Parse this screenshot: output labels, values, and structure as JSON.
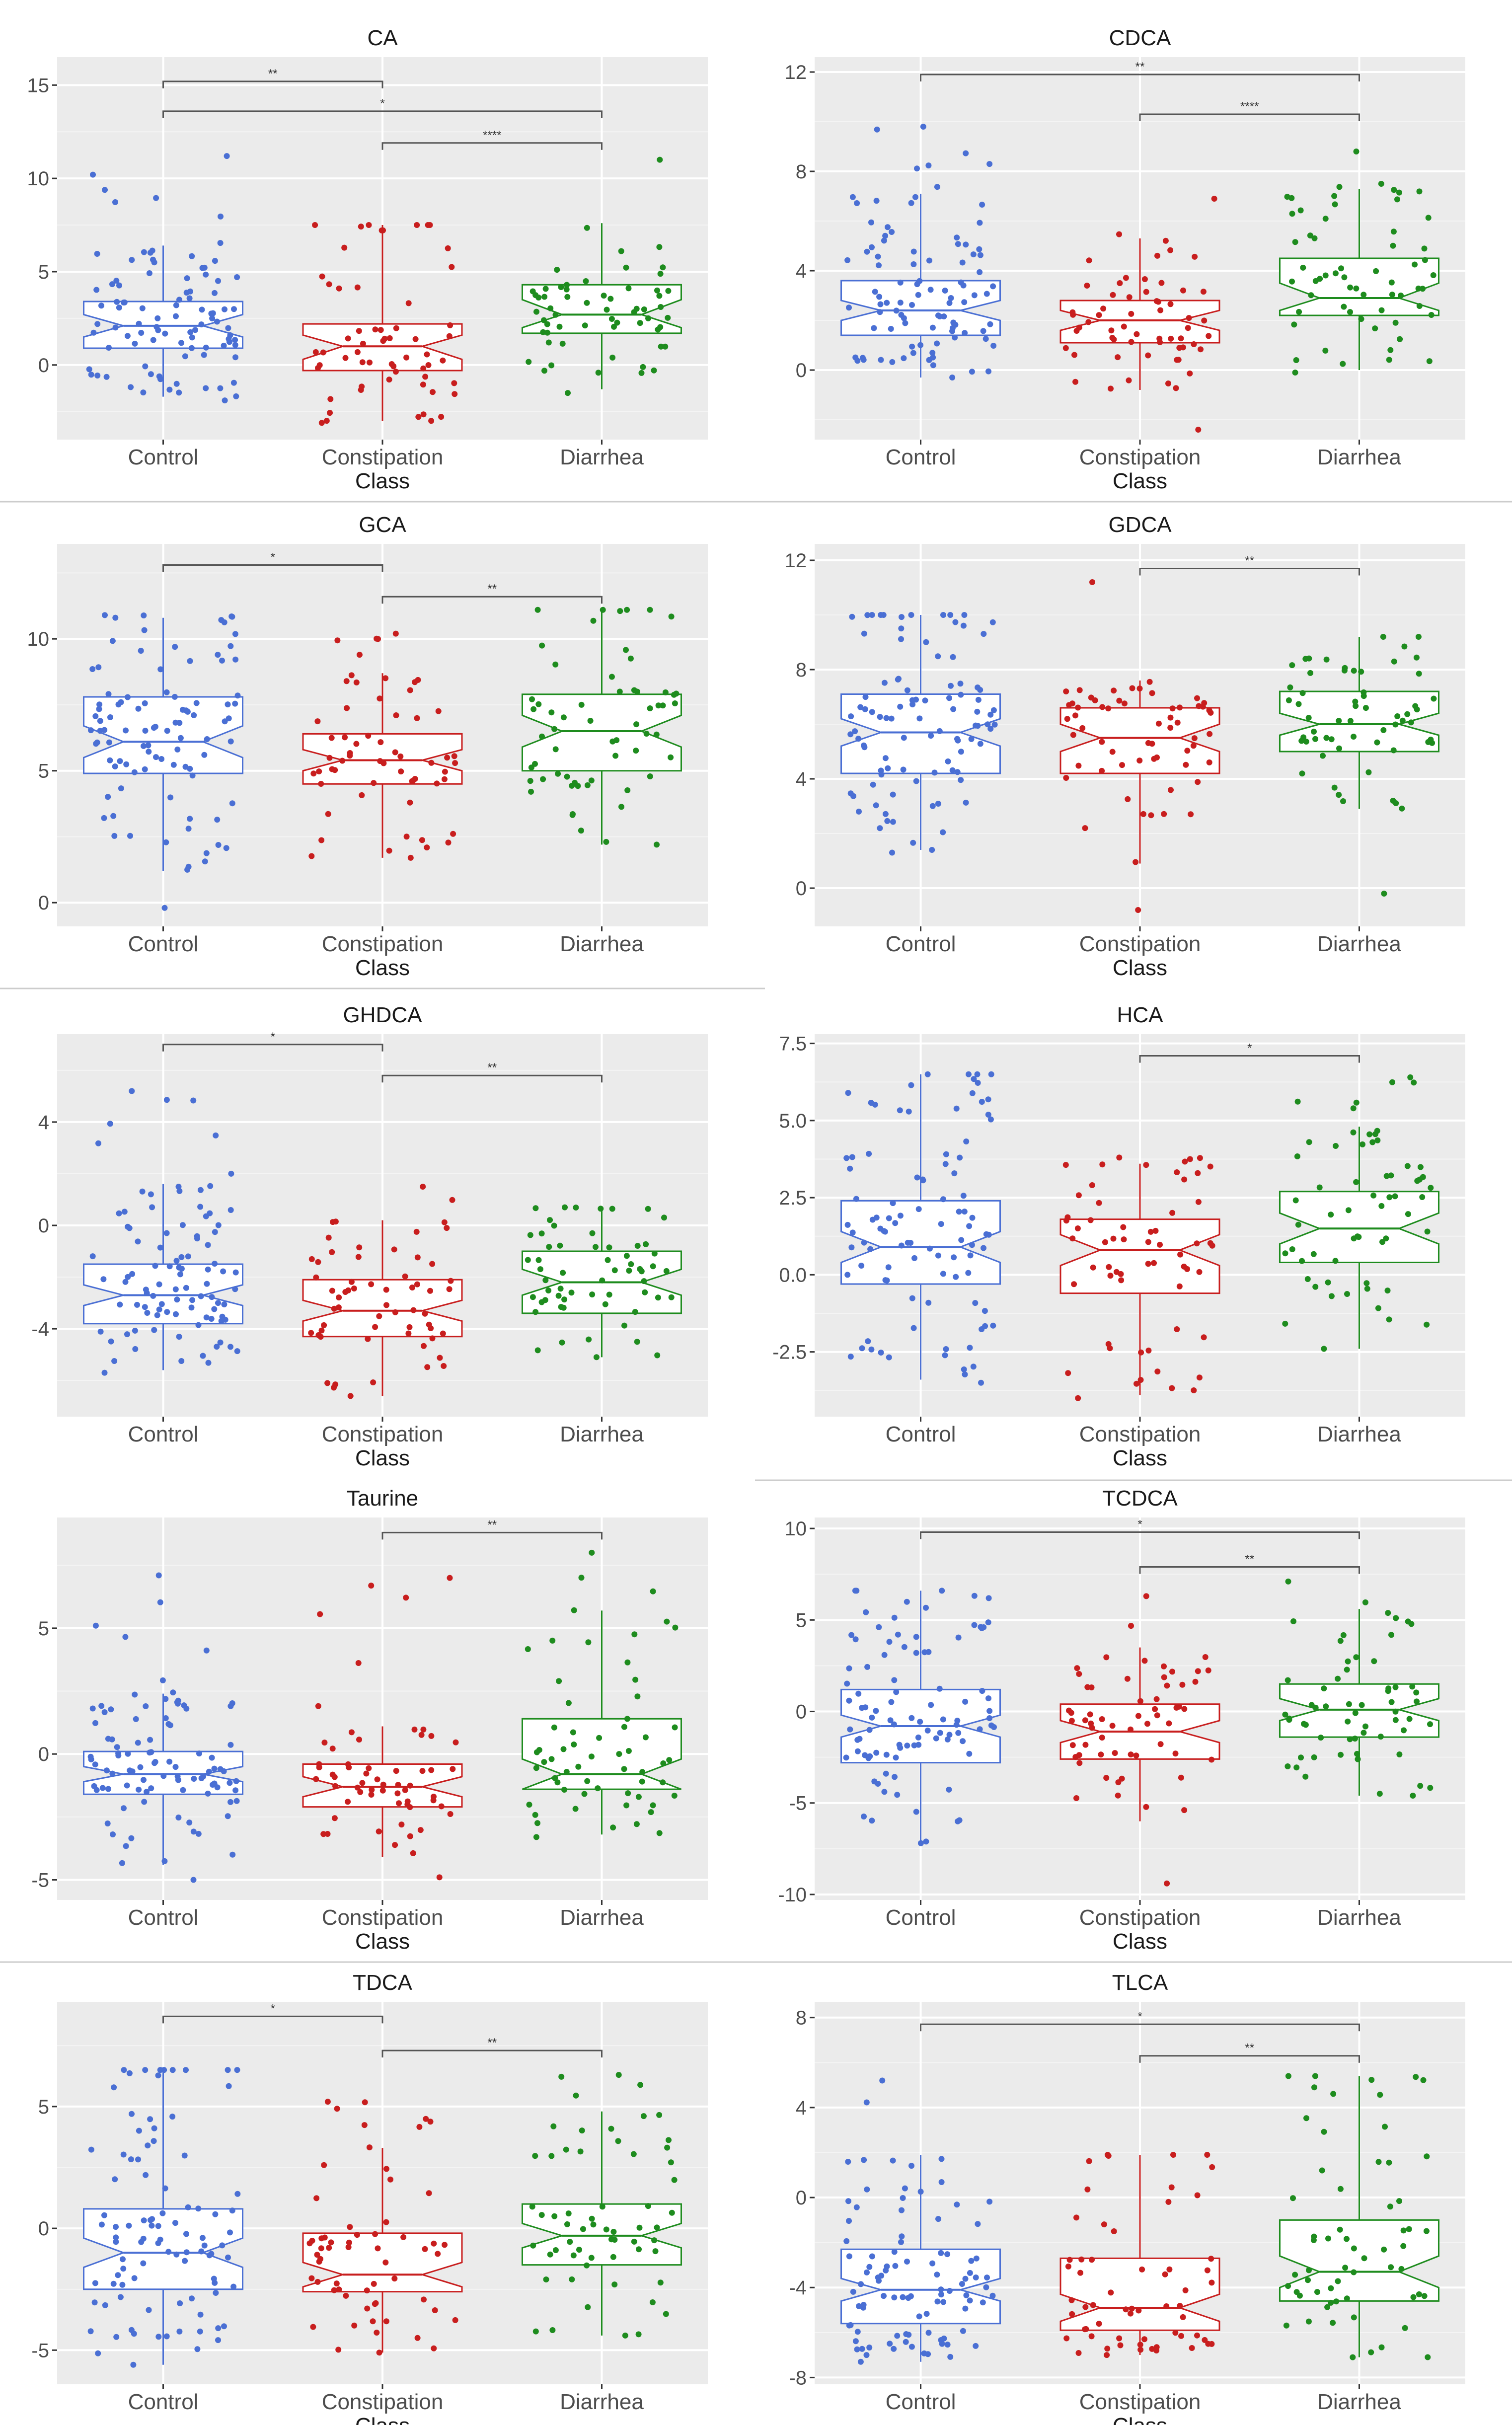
{
  "colors": {
    "panel_bg": "#ebebeb",
    "grid_major": "#ffffff",
    "grid_minor": "#f4f4f4",
    "bracket": "#555555",
    "divider": "#cccccc",
    "box_fill": "#ffffff",
    "Control": "#4a6fd4",
    "Constipation": "#c81e1e",
    "Diarrhea": "#1e8c1e"
  },
  "chart_data": [
    {
      "type": "boxplot",
      "title": "CA",
      "xlabel": "Class",
      "categories": [
        "Control",
        "Constipation",
        "Diarrhea"
      ],
      "ylim": [
        -4,
        16.5
      ],
      "yticks": [
        0,
        5,
        10,
        15
      ],
      "box_stats": [
        {
          "name": "Control",
          "q1": 0.9,
          "median": 2.1,
          "q3": 3.4,
          "whisker_low": -1.7,
          "whisker_high": 6.4,
          "notch": [
            1.5,
            2.7
          ],
          "n": 95,
          "spread": [
            -1.9,
            11.2
          ]
        },
        {
          "name": "Constipation",
          "q1": -0.3,
          "median": 1.0,
          "q3": 2.2,
          "whisker_low": -3.0,
          "whisker_high": 7.5,
          "notch": [
            0.3,
            1.6
          ],
          "n": 60,
          "spread": [
            -3.1,
            7.5
          ]
        },
        {
          "name": "Diarrhea",
          "q1": 1.7,
          "median": 2.7,
          "q3": 4.3,
          "whisker_low": -1.3,
          "whisker_high": 7.6,
          "notch": [
            2.0,
            3.5
          ],
          "n": 60,
          "spread": [
            -1.5,
            11.0
          ]
        }
      ],
      "comparisons": [
        {
          "from": "Control",
          "to": "Constipation",
          "y": 15.2,
          "label": "**"
        },
        {
          "from": "Control",
          "to": "Diarrhea",
          "y": 13.6,
          "label": "*"
        },
        {
          "from": "Constipation",
          "to": "Diarrhea",
          "y": 11.9,
          "label": "****"
        }
      ]
    },
    {
      "type": "boxplot",
      "title": "CDCA",
      "xlabel": "Class",
      "categories": [
        "Control",
        "Constipation",
        "Diarrhea"
      ],
      "ylim": [
        -2.8,
        12.6
      ],
      "yticks": [
        0,
        4,
        8,
        12
      ],
      "box_stats": [
        {
          "name": "Control",
          "q1": 1.4,
          "median": 2.4,
          "q3": 3.6,
          "whisker_low": -0.3,
          "whisker_high": 7.1,
          "notch": [
            2.0,
            2.8
          ],
          "n": 95,
          "spread": [
            -0.3,
            9.8
          ]
        },
        {
          "name": "Constipation",
          "q1": 1.1,
          "median": 2.0,
          "q3": 2.8,
          "whisker_low": -0.8,
          "whisker_high": 5.3,
          "notch": [
            1.6,
            2.4
          ],
          "n": 60,
          "spread": [
            -2.4,
            6.9
          ]
        },
        {
          "name": "Diarrhea",
          "q1": 2.2,
          "median": 2.9,
          "q3": 4.5,
          "whisker_low": 0.0,
          "whisker_high": 7.3,
          "notch": [
            2.4,
            3.5
          ],
          "n": 60,
          "spread": [
            -0.1,
            8.8
          ]
        }
      ],
      "comparisons": [
        {
          "from": "Control",
          "to": "Diarrhea",
          "y": 11.9,
          "label": "**"
        },
        {
          "from": "Constipation",
          "to": "Diarrhea",
          "y": 10.3,
          "label": "****"
        }
      ]
    },
    {
      "type": "boxplot",
      "title": "GCA",
      "xlabel": "Class",
      "categories": [
        "Control",
        "Constipation",
        "Diarrhea"
      ],
      "ylim": [
        -0.9,
        13.6
      ],
      "yticks": [
        0,
        5,
        10
      ],
      "box_stats": [
        {
          "name": "Control",
          "q1": 4.9,
          "median": 6.1,
          "q3": 7.8,
          "whisker_low": 1.2,
          "whisker_high": 10.8,
          "notch": [
            5.5,
            6.7
          ],
          "n": 95,
          "spread": [
            -0.2,
            10.9
          ]
        },
        {
          "name": "Constipation",
          "q1": 4.5,
          "median": 5.4,
          "q3": 6.4,
          "whisker_low": 1.7,
          "whisker_high": 8.7,
          "notch": [
            5.0,
            5.8
          ],
          "n": 60,
          "spread": [
            1.7,
            10.2
          ]
        },
        {
          "name": "Diarrhea",
          "q1": 5.0,
          "median": 6.5,
          "q3": 7.9,
          "whisker_low": 2.2,
          "whisker_high": 11.1,
          "notch": [
            5.9,
            7.1
          ],
          "n": 60,
          "spread": [
            2.2,
            11.1
          ]
        }
      ],
      "comparisons": [
        {
          "from": "Control",
          "to": "Constipation",
          "y": 12.8,
          "label": "*"
        },
        {
          "from": "Constipation",
          "to": "Diarrhea",
          "y": 11.6,
          "label": "**"
        }
      ]
    },
    {
      "type": "boxplot",
      "title": "GDCA",
      "xlabel": "Class",
      "categories": [
        "Control",
        "Constipation",
        "Diarrhea"
      ],
      "ylim": [
        -1.4,
        12.6
      ],
      "yticks": [
        0,
        4,
        8,
        12
      ],
      "box_stats": [
        {
          "name": "Control",
          "q1": 4.2,
          "median": 5.7,
          "q3": 7.1,
          "whisker_low": 1.4,
          "whisker_high": 10.0,
          "notch": [
            5.2,
            6.2
          ],
          "n": 95,
          "spread": [
            1.3,
            10.0
          ]
        },
        {
          "name": "Constipation",
          "q1": 4.2,
          "median": 5.5,
          "q3": 6.6,
          "whisker_low": 0.9,
          "whisker_high": 7.6,
          "notch": [
            5.0,
            6.0
          ],
          "n": 60,
          "spread": [
            -0.8,
            11.2
          ]
        },
        {
          "name": "Diarrhea",
          "q1": 5.0,
          "median": 6.0,
          "q3": 7.2,
          "whisker_low": 2.9,
          "whisker_high": 9.2,
          "notch": [
            5.6,
            6.4
          ],
          "n": 60,
          "spread": [
            -0.2,
            9.2
          ]
        }
      ],
      "comparisons": [
        {
          "from": "Constipation",
          "to": "Diarrhea",
          "y": 11.7,
          "label": "**"
        }
      ]
    },
    {
      "type": "boxplot",
      "title": "GHDCA",
      "xlabel": "Class",
      "categories": [
        "Control",
        "Constipation",
        "Diarrhea"
      ],
      "ylim": [
        -7.4,
        7.4
      ],
      "yticks": [
        -4,
        0,
        4
      ],
      "box_stats": [
        {
          "name": "Control",
          "q1": -3.8,
          "median": -2.7,
          "q3": -1.5,
          "whisker_low": -5.6,
          "whisker_high": 1.6,
          "notch": [
            -3.1,
            -2.3
          ],
          "n": 95,
          "spread": [
            -5.7,
            5.2
          ]
        },
        {
          "name": "Constipation",
          "q1": -4.3,
          "median": -3.3,
          "q3": -2.1,
          "whisker_low": -6.6,
          "whisker_high": 0.2,
          "notch": [
            -3.7,
            -2.9
          ],
          "n": 60,
          "spread": [
            -6.6,
            1.5
          ]
        },
        {
          "name": "Diarrhea",
          "q1": -3.4,
          "median": -2.2,
          "q3": -1.0,
          "whisker_low": -5.1,
          "whisker_high": 0.6,
          "notch": [
            -2.7,
            -1.7
          ],
          "n": 60,
          "spread": [
            -5.1,
            0.7
          ]
        }
      ],
      "comparisons": [
        {
          "from": "Control",
          "to": "Constipation",
          "y": 7.0,
          "label": "*"
        },
        {
          "from": "Constipation",
          "to": "Diarrhea",
          "y": 5.8,
          "label": "**"
        }
      ]
    },
    {
      "type": "boxplot",
      "title": "HCA",
      "xlabel": "Class",
      "categories": [
        "Control",
        "Constipation",
        "Diarrhea"
      ],
      "ylim": [
        -4.6,
        7.8
      ],
      "yticks": [
        -2.5,
        0.0,
        2.5,
        5.0,
        7.5
      ],
      "ytick_labels": [
        "-2.5",
        "0.0",
        "2.5",
        "5.0",
        "7.5"
      ],
      "box_stats": [
        {
          "name": "Control",
          "q1": -0.3,
          "median": 0.9,
          "q3": 2.4,
          "whisker_low": -3.4,
          "whisker_high": 6.5,
          "notch": [
            0.4,
            1.4
          ],
          "n": 95,
          "spread": [
            -3.5,
            6.5
          ]
        },
        {
          "name": "Constipation",
          "q1": -0.6,
          "median": 0.8,
          "q3": 1.8,
          "whisker_low": -3.9,
          "whisker_high": 3.6,
          "notch": [
            0.3,
            1.3
          ],
          "n": 60,
          "spread": [
            -4.0,
            3.8
          ]
        },
        {
          "name": "Diarrhea",
          "q1": 0.4,
          "median": 1.5,
          "q3": 2.7,
          "whisker_low": -2.4,
          "whisker_high": 4.8,
          "notch": [
            1.0,
            2.0
          ],
          "n": 60,
          "spread": [
            -2.4,
            6.4
          ]
        }
      ],
      "comparisons": [
        {
          "from": "Constipation",
          "to": "Diarrhea",
          "y": 7.1,
          "label": "*"
        }
      ]
    },
    {
      "type": "boxplot",
      "title": "Taurine",
      "xlabel": "Class",
      "categories": [
        "Control",
        "Constipation",
        "Diarrhea"
      ],
      "ylim": [
        -5.8,
        9.4
      ],
      "yticks": [
        -5,
        0,
        5
      ],
      "box_stats": [
        {
          "name": "Control",
          "q1": -1.6,
          "median": -0.8,
          "q3": 0.1,
          "whisker_low": -4.4,
          "whisker_high": 2.4,
          "notch": [
            -1.1,
            -0.5
          ],
          "n": 95,
          "spread": [
            -5.0,
            7.1
          ]
        },
        {
          "name": "Constipation",
          "q1": -2.1,
          "median": -1.3,
          "q3": -0.4,
          "whisker_low": -4.1,
          "whisker_high": 1.1,
          "notch": [
            -1.7,
            -0.9
          ],
          "n": 60,
          "spread": [
            -4.9,
            7.0
          ]
        },
        {
          "name": "Diarrhea",
          "q1": -1.4,
          "median": -0.8,
          "q3": 1.4,
          "whisker_low": -3.2,
          "whisker_high": 5.7,
          "notch": [
            -1.4,
            -0.2
          ],
          "n": 60,
          "spread": [
            -3.3,
            8.0
          ]
        }
      ],
      "comparisons": [
        {
          "from": "Constipation",
          "to": "Diarrhea",
          "y": 8.8,
          "label": "**"
        }
      ]
    },
    {
      "type": "boxplot",
      "title": "TCDCA",
      "xlabel": "Class",
      "categories": [
        "Control",
        "Constipation",
        "Diarrhea"
      ],
      "ylim": [
        -10.3,
        10.6
      ],
      "yticks": [
        -10,
        -5,
        0,
        5,
        10
      ],
      "box_stats": [
        {
          "name": "Control",
          "q1": -2.8,
          "median": -0.8,
          "q3": 1.2,
          "whisker_low": -7.2,
          "whisker_high": 6.6,
          "notch": [
            -1.4,
            -0.2
          ],
          "n": 95,
          "spread": [
            -7.2,
            6.6
          ]
        },
        {
          "name": "Constipation",
          "q1": -2.6,
          "median": -1.1,
          "q3": 0.4,
          "whisker_low": -6.0,
          "whisker_high": 3.5,
          "notch": [
            -1.7,
            -0.5
          ],
          "n": 60,
          "spread": [
            -9.4,
            6.3
          ]
        },
        {
          "name": "Diarrhea",
          "q1": -1.4,
          "median": 0.1,
          "q3": 1.5,
          "whisker_low": -4.6,
          "whisker_high": 5.6,
          "notch": [
            -0.5,
            0.7
          ],
          "n": 60,
          "spread": [
            -4.6,
            7.1
          ]
        }
      ],
      "comparisons": [
        {
          "from": "Control",
          "to": "Diarrhea",
          "y": 9.8,
          "label": "*"
        },
        {
          "from": "Constipation",
          "to": "Diarrhea",
          "y": 7.9,
          "label": "**"
        }
      ]
    },
    {
      "type": "boxplot",
      "title": "TDCA",
      "xlabel": "Class",
      "categories": [
        "Control",
        "Constipation",
        "Diarrhea"
      ],
      "ylim": [
        -6.4,
        9.3
      ],
      "yticks": [
        -5,
        0,
        5
      ],
      "box_stats": [
        {
          "name": "Control",
          "q1": -2.5,
          "median": -1.0,
          "q3": 0.8,
          "whisker_low": -5.6,
          "whisker_high": 6.5,
          "notch": [
            -1.6,
            -0.4
          ],
          "n": 95,
          "spread": [
            -5.6,
            6.5
          ]
        },
        {
          "name": "Constipation",
          "q1": -2.6,
          "median": -1.9,
          "q3": -0.2,
          "whisker_low": -5.1,
          "whisker_high": 3.3,
          "notch": [
            -2.4,
            -1.4
          ],
          "n": 60,
          "spread": [
            -5.1,
            5.2
          ]
        },
        {
          "name": "Diarrhea",
          "q1": -1.5,
          "median": -0.3,
          "q3": 1.0,
          "whisker_low": -4.4,
          "whisker_high": 4.8,
          "notch": [
            -0.8,
            0.2
          ],
          "n": 60,
          "spread": [
            -4.4,
            6.3
          ]
        }
      ],
      "comparisons": [
        {
          "from": "Control",
          "to": "Constipation",
          "y": 8.7,
          "label": "*"
        },
        {
          "from": "Constipation",
          "to": "Diarrhea",
          "y": 7.3,
          "label": "**"
        }
      ]
    },
    {
      "type": "boxplot",
      "title": "TLCA",
      "xlabel": "Class",
      "categories": [
        "Control",
        "Constipation",
        "Diarrhea"
      ],
      "ylim": [
        -8.3,
        8.7
      ],
      "yticks": [
        -8,
        -4,
        0,
        4,
        8
      ],
      "box_stats": [
        {
          "name": "Control",
          "q1": -5.6,
          "median": -4.1,
          "q3": -2.3,
          "whisker_low": -7.3,
          "whisker_high": 1.9,
          "notch": [
            -4.6,
            -3.6
          ],
          "n": 95,
          "spread": [
            -7.3,
            5.2
          ]
        },
        {
          "name": "Constipation",
          "q1": -5.9,
          "median": -4.9,
          "q3": -2.7,
          "whisker_low": -7.0,
          "whisker_high": 1.9,
          "notch": [
            -5.5,
            -4.3
          ],
          "n": 60,
          "spread": [
            -7.0,
            1.9
          ]
        },
        {
          "name": "Diarrhea",
          "q1": -4.6,
          "median": -3.3,
          "q3": -1.0,
          "whisker_low": -7.1,
          "whisker_high": 5.4,
          "notch": [
            -4.0,
            -2.6
          ],
          "n": 60,
          "spread": [
            -7.1,
            5.4
          ]
        }
      ],
      "comparisons": [
        {
          "from": "Control",
          "to": "Diarrhea",
          "y": 7.7,
          "label": "*"
        },
        {
          "from": "Constipation",
          "to": "Diarrhea",
          "y": 6.3,
          "label": "**"
        }
      ]
    }
  ]
}
